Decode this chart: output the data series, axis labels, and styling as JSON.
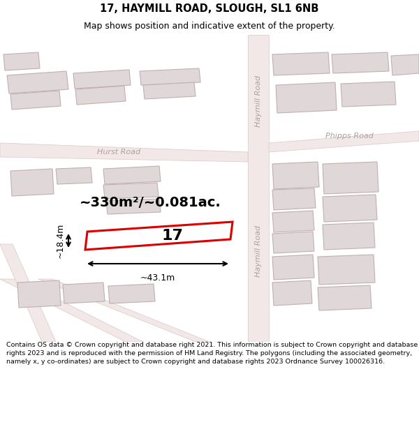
{
  "title": "17, HAYMILL ROAD, SLOUGH, SL1 6NB",
  "subtitle": "Map shows position and indicative extent of the property.",
  "footer": "Contains OS data © Crown copyright and database right 2021. This information is subject to Crown copyright and database rights 2023 and is reproduced with the permission of HM Land Registry. The polygons (including the associated geometry, namely x, y co-ordinates) are subject to Crown copyright and database rights 2023 Ordnance Survey 100026316.",
  "area_label": "~330m²/~0.081ac.",
  "width_label": "~43.1m",
  "height_label": "~18.4m",
  "plot_number": "17",
  "map_bg": "#f7f3f3",
  "road_fill": "#f2e8e8",
  "road_edge": "#d8c8c8",
  "building_fill": "#e0d8d8",
  "building_edge": "#c0b0b0",
  "highlight_color": "#dd0000",
  "road_label_color": "#b0a0a0",
  "title_fontsize": 10.5,
  "subtitle_fontsize": 9,
  "footer_fontsize": 6.8,
  "area_fontsize": 14,
  "dim_fontsize": 9,
  "plot_num_fontsize": 16
}
